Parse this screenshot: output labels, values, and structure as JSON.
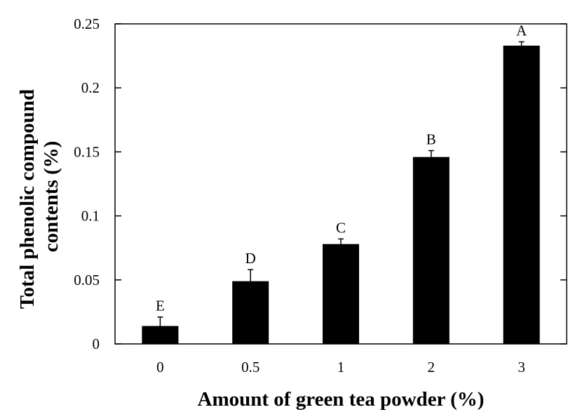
{
  "chart_data": {
    "type": "bar",
    "categories": [
      "0",
      "0.5",
      "1",
      "2",
      "3"
    ],
    "values": [
      0.014,
      0.049,
      0.078,
      0.146,
      0.233
    ],
    "errors": [
      0.007,
      0.009,
      0.004,
      0.005,
      0.003
    ],
    "significance_labels": [
      "E",
      "D",
      "C",
      "B",
      "A"
    ],
    "xlabel": "Amount of green tea powder (%)",
    "ylabel_lines": [
      "Total phenolic compound",
      "contents (%)"
    ],
    "ylim": [
      0,
      0.25
    ],
    "yticks": [
      0,
      0.05,
      0.1,
      0.15,
      0.2,
      0.25
    ],
    "ytick_labels": [
      "0",
      "0.05",
      "0.1",
      "0.15",
      "0.2",
      "0.25"
    ],
    "grid": false,
    "bar_color": "#000000"
  }
}
